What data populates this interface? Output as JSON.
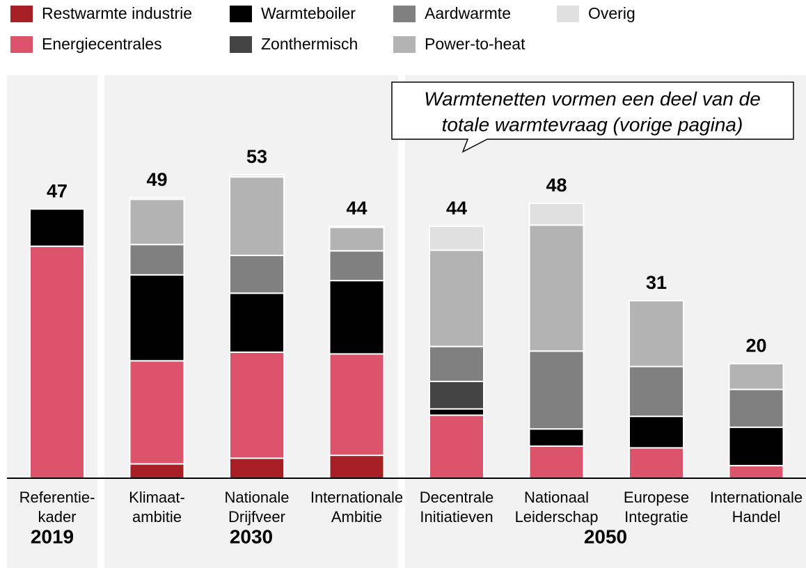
{
  "chart_data": {
    "type": "stacked_bar",
    "categories": [
      [
        "Referentie-",
        "kader"
      ],
      [
        "Klimaat-",
        "ambitie"
      ],
      [
        "Nationale",
        "Drijfveer"
      ],
      [
        "Internationale",
        "Ambitie"
      ],
      [
        "Decentrale",
        "Initiatieven"
      ],
      [
        "Nationaal",
        "Leiderschap"
      ],
      [
        "Europese",
        "Integratie"
      ],
      [
        "Internationale",
        "Handel"
      ]
    ],
    "groups": [
      "2019",
      "2030",
      "2050"
    ],
    "series": [
      {
        "name": "Restwarmte industrie",
        "color": "#a51f24",
        "values": [
          null,
          2.5,
          3.5,
          4,
          null,
          null,
          null,
          null
        ]
      },
      {
        "name": "Energiecentrales",
        "color": "#dc546b",
        "values": [
          40.5,
          18,
          18.5,
          17.7,
          11,
          5.6,
          5.3,
          2.2
        ]
      },
      {
        "name": "Warmteboiler",
        "color": "#000000",
        "values": [
          6.5,
          15,
          10.3,
          12.8,
          1.1,
          3,
          5.5,
          6.7
        ]
      },
      {
        "name": "Zonthermisch",
        "color": "#444444",
        "values": [
          null,
          null,
          null,
          null,
          4.8,
          null,
          null,
          null
        ]
      },
      {
        "name": "Aardwarmte",
        "color": "#808080",
        "values": [
          null,
          5.3,
          6.6,
          5.2,
          6.1,
          13.6,
          8.7,
          6.6
        ]
      },
      {
        "name": "Power-to-heat",
        "color": "#b3b3b3",
        "values": [
          null,
          7.9,
          13.7,
          4.1,
          16.8,
          22,
          11.5,
          4.5
        ]
      },
      {
        "name": "Overig",
        "color": "#e0e0e0",
        "values": [
          null,
          0.3,
          0.4,
          0.2,
          4.2,
          3.8,
          null,
          null
        ]
      }
    ],
    "totals": [
      47,
      49,
      53,
      44,
      44,
      48,
      31,
      20
    ],
    "annotation": [
      "Warmtenetten vormen een deel van de",
      "totale warmtevraag (vorige pagina)"
    ],
    "ylim": [
      0,
      70
    ]
  }
}
